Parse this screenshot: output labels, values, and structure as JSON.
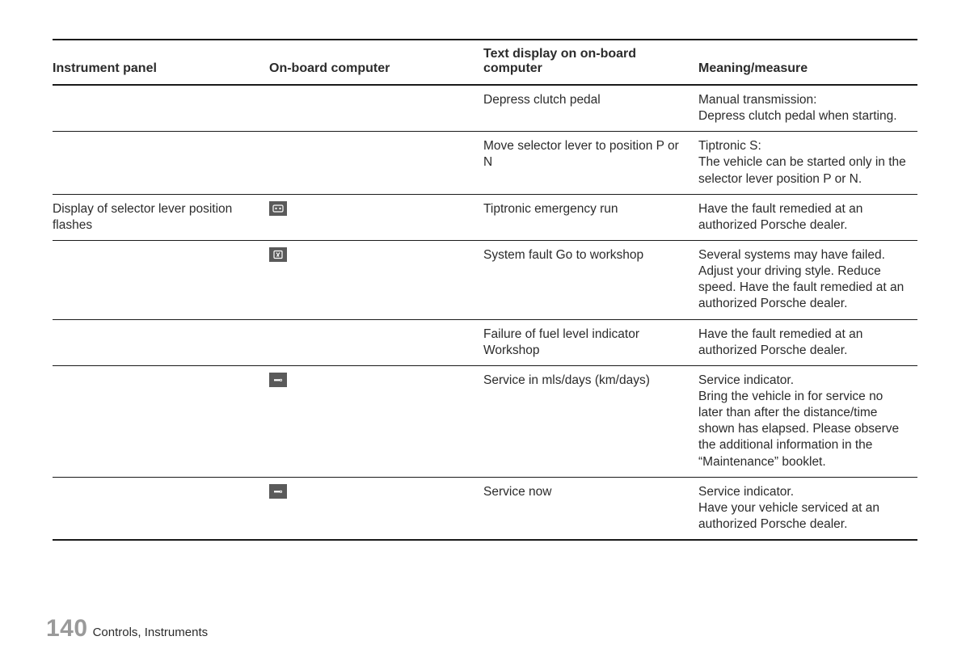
{
  "table": {
    "headers": {
      "c1": "Instrument panel",
      "c2": "On-board computer",
      "c3": "Text display on on-board computer",
      "c4": "Meaning/measure"
    },
    "rows": [
      {
        "instrument": "",
        "icon": null,
        "text": "Depress clutch pedal",
        "meaning": "Manual transmission:\nDepress clutch pedal when starting."
      },
      {
        "instrument": "",
        "icon": null,
        "text": "Move selector lever to position P or N",
        "meaning": "Tiptronic S:\nThe vehicle can be started only in the selector lever position P or N."
      },
      {
        "instrument": "Display of selector lever position flashes",
        "icon": "dashboard-icon",
        "text": "Tiptronic emergency run",
        "meaning": "Have the fault remedied at an authorized Porsche dealer."
      },
      {
        "instrument": "",
        "icon": "fault-icon",
        "text": "System fault Go to workshop",
        "meaning": "Several systems may have failed. Adjust your driving style. Reduce speed. Have the fault remedied at an authorized Porsche dealer."
      },
      {
        "instrument": "",
        "icon": null,
        "text": "Failure of fuel level indicator Workshop",
        "meaning": "Have the fault remedied at an authorized Porsche dealer."
      },
      {
        "instrument": "",
        "icon": "wrench-icon",
        "text": "Service in mls/days (km/days)",
        "meaning": "Service indicator.\nBring the vehicle in for service no later than after the distance/time shown has elapsed. Please observe the additional information in the “Maintenance” booklet."
      },
      {
        "instrument": "",
        "icon": "wrench-icon",
        "text": "Service now",
        "meaning": "Service indicator.\nHave your vehicle serviced at an authorized Porsche dealer."
      }
    ]
  },
  "footer": {
    "page": "140",
    "section": "Controls, Instruments"
  },
  "colors": {
    "text": "#2b2b2b",
    "border": "#1a1a1a",
    "iconbg": "#5a5a5a",
    "pagenum": "#9a9a9a",
    "bg": "#ffffff"
  }
}
